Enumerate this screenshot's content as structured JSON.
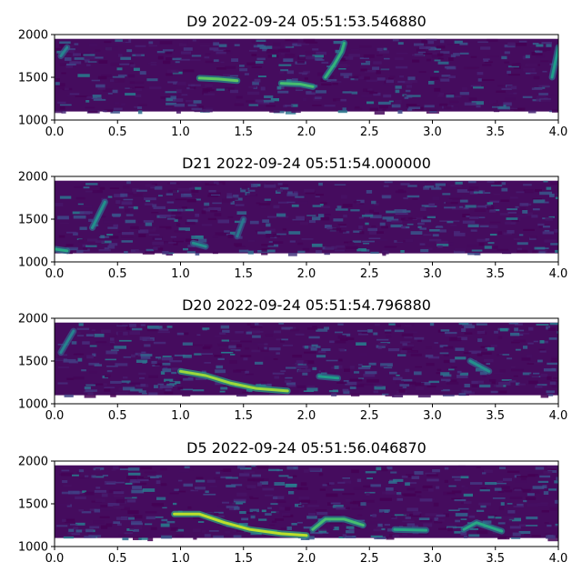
{
  "chart_data": [
    {
      "type": "heatmap",
      "title": "D9 2022-09-24 05:51:53.546880",
      "xlim": [
        0,
        4
      ],
      "ylim": [
        1000,
        2000
      ],
      "xticks": [
        "0.0",
        "0.5",
        "1.0",
        "1.5",
        "2.0",
        "2.5",
        "3.0",
        "3.5",
        "4.0"
      ],
      "yticks": [
        "1000",
        "1500",
        "2000"
      ],
      "freq_range": [
        1100,
        1950
      ],
      "colormap": "viridis",
      "calls": [
        {
          "points": [
            [
              1.15,
              1490
            ],
            [
              1.3,
              1480
            ],
            [
              1.45,
              1460
            ]
          ],
          "intensity": 0.75
        },
        {
          "points": [
            [
              1.8,
              1430
            ],
            [
              1.95,
              1420
            ],
            [
              2.05,
              1390
            ]
          ],
          "intensity": 0.7
        },
        {
          "points": [
            [
              2.15,
              1500
            ],
            [
              2.22,
              1650
            ],
            [
              2.28,
              1800
            ],
            [
              2.3,
              1900
            ]
          ],
          "intensity": 0.65
        },
        {
          "points": [
            [
              3.95,
              1500
            ],
            [
              4.0,
              1850
            ]
          ],
          "intensity": 0.55
        },
        {
          "points": [
            [
              0.05,
              1750
            ],
            [
              0.1,
              1850
            ]
          ],
          "intensity": 0.45
        }
      ]
    },
    {
      "type": "heatmap",
      "title": "D21 2022-09-24 05:51:54.000000",
      "xlim": [
        0,
        4
      ],
      "ylim": [
        1000,
        2000
      ],
      "xticks": [
        "0.0",
        "0.5",
        "1.0",
        "1.5",
        "2.0",
        "2.5",
        "3.0",
        "3.5",
        "4.0"
      ],
      "yticks": [
        "1000",
        "1500",
        "2000"
      ],
      "freq_range": [
        1100,
        1950
      ],
      "colormap": "viridis",
      "calls": [
        {
          "points": [
            [
              0.0,
              1150
            ],
            [
              0.1,
              1130
            ]
          ],
          "intensity": 0.6
        },
        {
          "points": [
            [
              0.3,
              1400
            ],
            [
              0.35,
              1550
            ],
            [
              0.4,
              1700
            ]
          ],
          "intensity": 0.5
        },
        {
          "points": [
            [
              1.1,
              1220
            ],
            [
              1.2,
              1180
            ]
          ],
          "intensity": 0.5
        },
        {
          "points": [
            [
              1.45,
              1300
            ],
            [
              1.5,
              1500
            ]
          ],
          "intensity": 0.4
        }
      ]
    },
    {
      "type": "heatmap",
      "title": "D20 2022-09-24 05:51:54.796880",
      "xlim": [
        0,
        4
      ],
      "ylim": [
        1000,
        2000
      ],
      "xticks": [
        "0.0",
        "0.5",
        "1.0",
        "1.5",
        "2.0",
        "2.5",
        "3.0",
        "3.5",
        "4.0"
      ],
      "yticks": [
        "1000",
        "1500",
        "2000"
      ],
      "freq_range": [
        1100,
        1950
      ],
      "colormap": "viridis",
      "calls": [
        {
          "points": [
            [
              1.0,
              1380
            ],
            [
              1.2,
              1330
            ],
            [
              1.4,
              1240
            ],
            [
              1.6,
              1180
            ],
            [
              1.85,
              1150
            ]
          ],
          "intensity": 0.85
        },
        {
          "points": [
            [
              2.1,
              1320
            ],
            [
              2.25,
              1300
            ]
          ],
          "intensity": 0.55
        },
        {
          "points": [
            [
              3.3,
              1500
            ],
            [
              3.45,
              1380
            ]
          ],
          "intensity": 0.5
        },
        {
          "points": [
            [
              0.05,
              1600
            ],
            [
              0.15,
              1850
            ]
          ],
          "intensity": 0.45
        }
      ]
    },
    {
      "type": "heatmap",
      "title": "D5 2022-09-24 05:51:56.046870",
      "xlim": [
        0,
        4
      ],
      "ylim": [
        1000,
        2000
      ],
      "xticks": [
        "0.0",
        "0.5",
        "1.0",
        "1.5",
        "2.0",
        "2.5",
        "3.0",
        "3.5",
        "4.0"
      ],
      "yticks": [
        "1000",
        "1500",
        "2000"
      ],
      "freq_range": [
        1100,
        1950
      ],
      "colormap": "viridis",
      "calls": [
        {
          "points": [
            [
              0.95,
              1380
            ],
            [
              1.15,
              1380
            ],
            [
              1.35,
              1280
            ],
            [
              1.55,
              1200
            ],
            [
              1.8,
              1150
            ],
            [
              2.0,
              1130
            ]
          ],
          "intensity": 0.9
        },
        {
          "points": [
            [
              2.05,
              1200
            ],
            [
              2.15,
              1320
            ],
            [
              2.3,
              1320
            ],
            [
              2.45,
              1250
            ]
          ],
          "intensity": 0.7
        },
        {
          "points": [
            [
              2.7,
              1200
            ],
            [
              2.95,
              1190
            ]
          ],
          "intensity": 0.6
        },
        {
          "points": [
            [
              3.25,
              1200
            ],
            [
              3.35,
              1280
            ],
            [
              3.55,
              1180
            ]
          ],
          "intensity": 0.6
        }
      ]
    }
  ]
}
